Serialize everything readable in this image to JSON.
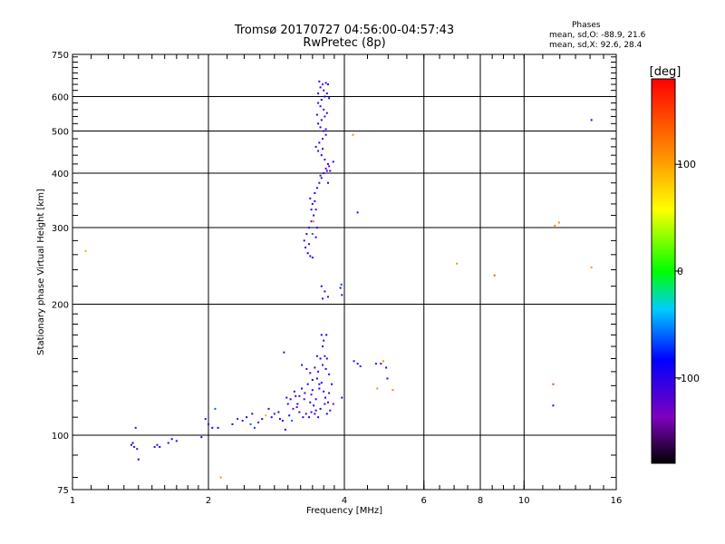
{
  "header": {
    "title_line1": "Tromsø 20170727 04:56:00-04:57:43",
    "title_line2": "RwPretec (8p)"
  },
  "phases": {
    "label": "Phases",
    "line_o": "mean, sd,O: -88.9, 21.6",
    "line_x": "mean, sd,X:  92.6, 28.4"
  },
  "colorbar": {
    "unit_label": "[deg]",
    "range": [
      -180,
      180
    ],
    "ticks": [
      {
        "value": 100,
        "label": "100"
      },
      {
        "value": 0,
        "label": "0"
      },
      {
        "value": -100,
        "label": "-100"
      }
    ]
  },
  "chart_data": {
    "type": "scatter",
    "xscale": "log2",
    "yscale": "log",
    "xlabel": "Frequency [MHz]",
    "ylabel": "Stationary phase Virtual Height [km]",
    "xlim": [
      1,
      16
    ],
    "ylim": [
      75,
      750
    ],
    "grid": true,
    "x_ticks": [
      "1",
      "2",
      "4",
      "6",
      "8",
      "10",
      "16"
    ],
    "x_tick_values": [
      1,
      2,
      4,
      6,
      8,
      10,
      16
    ],
    "y_ticks": [
      "75",
      "100",
      "200",
      "300",
      "400",
      "500",
      "600",
      "750"
    ],
    "y_tick_values": [
      75,
      100,
      200,
      300,
      400,
      500,
      600,
      750
    ],
    "x_gridlines": [
      2,
      4,
      6,
      8,
      10
    ],
    "y_gridlines": [
      100,
      200,
      300,
      400,
      500,
      600
    ],
    "points": [
      [
        1.07,
        265,
        95
      ],
      [
        1.35,
        95,
        -100
      ],
      [
        1.37,
        94,
        -110
      ],
      [
        1.38,
        104,
        -120
      ],
      [
        1.39,
        93,
        -115
      ],
      [
        1.4,
        88,
        -100
      ],
      [
        1.36,
        96,
        -90
      ],
      [
        1.52,
        94,
        -100
      ],
      [
        1.54,
        95,
        -110
      ],
      [
        1.56,
        94,
        -90
      ],
      [
        1.63,
        96,
        -100
      ],
      [
        1.66,
        98,
        -80
      ],
      [
        1.7,
        97,
        -95
      ],
      [
        1.93,
        99,
        -100
      ],
      [
        1.97,
        109,
        -110
      ],
      [
        2.0,
        106,
        -105
      ],
      [
        2.04,
        104,
        -90
      ],
      [
        2.07,
        115,
        -60
      ],
      [
        2.1,
        104,
        -100
      ],
      [
        2.13,
        80,
        110
      ],
      [
        2.26,
        106,
        -100
      ],
      [
        2.32,
        109,
        -120
      ],
      [
        2.38,
        108,
        -110
      ],
      [
        2.43,
        110,
        -90
      ],
      [
        2.48,
        106,
        -60
      ],
      [
        2.5,
        112,
        -100
      ],
      [
        2.53,
        104,
        -70
      ],
      [
        2.58,
        107,
        -110
      ],
      [
        2.63,
        109,
        -95
      ],
      [
        2.68,
        111,
        100
      ],
      [
        2.72,
        115,
        -100
      ],
      [
        2.76,
        110,
        -110
      ],
      [
        2.8,
        112,
        -120
      ],
      [
        2.86,
        113,
        -90
      ],
      [
        2.92,
        108,
        -80
      ],
      [
        2.96,
        103,
        -100
      ],
      [
        3.0,
        118,
        -110
      ],
      [
        3.04,
        121,
        -105
      ],
      [
        3.08,
        115,
        -130
      ],
      [
        3.12,
        123,
        -100
      ],
      [
        3.15,
        118,
        -90
      ],
      [
        3.18,
        113,
        -110
      ],
      [
        3.22,
        128,
        -100
      ],
      [
        3.26,
        121,
        -120
      ],
      [
        3.29,
        112,
        -105
      ],
      [
        3.32,
        131,
        -95
      ],
      [
        3.34,
        110,
        -110
      ],
      [
        3.36,
        119,
        -100
      ],
      [
        3.38,
        124,
        -130
      ],
      [
        3.4,
        127,
        -100
      ],
      [
        3.42,
        117,
        -90
      ],
      [
        3.44,
        112,
        -110
      ],
      [
        3.46,
        121,
        -100
      ],
      [
        3.48,
        135,
        -95
      ],
      [
        3.5,
        140,
        -110
      ],
      [
        3.52,
        128,
        -100
      ],
      [
        3.54,
        150,
        -90
      ],
      [
        3.56,
        132,
        -100
      ],
      [
        3.58,
        145,
        -120
      ],
      [
        3.6,
        126,
        -105
      ],
      [
        3.62,
        118,
        -110
      ],
      [
        3.64,
        142,
        -100
      ],
      [
        3.66,
        150,
        -95
      ],
      [
        3.68,
        119,
        -110
      ],
      [
        3.7,
        125,
        -100
      ],
      [
        3.22,
        145,
        -120
      ],
      [
        3.3,
        142,
        -110
      ],
      [
        3.36,
        139,
        -100
      ],
      [
        3.44,
        143,
        -105
      ],
      [
        3.48,
        152,
        -95
      ],
      [
        3.56,
        170,
        -100
      ],
      [
        3.6,
        165,
        -110
      ],
      [
        3.65,
        170,
        -90
      ],
      [
        3.58,
        160,
        -100
      ],
      [
        3.62,
        152,
        -120
      ],
      [
        3.7,
        138,
        -110
      ],
      [
        3.52,
        131,
        -100
      ],
      [
        3.4,
        134,
        -95
      ],
      [
        3.1,
        126,
        -100
      ],
      [
        3.06,
        108,
        -60
      ],
      [
        2.98,
        122,
        -100
      ],
      [
        2.94,
        155,
        -110
      ],
      [
        3.18,
        123,
        -120
      ],
      [
        3.27,
        125,
        -110
      ],
      [
        3.46,
        114,
        -100
      ],
      [
        3.54,
        115,
        -90
      ],
      [
        3.63,
        122,
        -100
      ],
      [
        3.72,
        114,
        -110
      ],
      [
        3.75,
        131,
        -100
      ],
      [
        3.78,
        118,
        -120
      ],
      [
        3.66,
        112,
        -95
      ],
      [
        3.5,
        110,
        -105
      ],
      [
        3.38,
        113,
        -110
      ],
      [
        3.24,
        110,
        -100
      ],
      [
        3.14,
        116,
        -120
      ],
      [
        3.02,
        111,
        -100
      ],
      [
        2.88,
        109,
        -95
      ],
      [
        3.56,
        220,
        -100
      ],
      [
        3.62,
        214,
        -110
      ],
      [
        3.68,
        208,
        -120
      ],
      [
        3.58,
        206,
        -100
      ],
      [
        3.92,
        218,
        -90
      ],
      [
        3.95,
        210,
        -100
      ],
      [
        3.94,
        222,
        -70
      ],
      [
        3.95,
        122,
        -100
      ],
      [
        4.2,
        148,
        -110
      ],
      [
        4.28,
        146,
        -100
      ],
      [
        4.34,
        144,
        -120
      ],
      [
        4.7,
        146,
        -110
      ],
      [
        4.82,
        146,
        -100
      ],
      [
        4.95,
        143,
        -90
      ],
      [
        4.88,
        148,
        110
      ],
      [
        4.73,
        128,
        105
      ],
      [
        5.12,
        127,
        115
      ],
      [
        4.98,
        135,
        -100
      ],
      [
        3.4,
        256,
        -100
      ],
      [
        3.36,
        258,
        -110
      ],
      [
        3.32,
        262,
        -90
      ],
      [
        3.28,
        270,
        -100
      ],
      [
        3.26,
        280,
        -110
      ],
      [
        3.3,
        290,
        -100
      ],
      [
        3.34,
        300,
        -95
      ],
      [
        3.38,
        310,
        -110
      ],
      [
        3.42,
        320,
        -100
      ],
      [
        3.46,
        330,
        -120
      ],
      [
        3.4,
        340,
        -100
      ],
      [
        3.36,
        350,
        -110
      ],
      [
        3.44,
        360,
        -100
      ],
      [
        3.48,
        370,
        -90
      ],
      [
        3.52,
        380,
        -100
      ],
      [
        3.56,
        390,
        -110
      ],
      [
        3.6,
        400,
        -100
      ],
      [
        3.64,
        410,
        -120
      ],
      [
        3.68,
        420,
        -100
      ],
      [
        3.62,
        430,
        -110
      ],
      [
        3.56,
        440,
        -95
      ],
      [
        3.5,
        450,
        -100
      ],
      [
        3.46,
        460,
        -110
      ],
      [
        3.52,
        470,
        -100
      ],
      [
        3.58,
        480,
        -120
      ],
      [
        3.64,
        490,
        -100
      ],
      [
        3.6,
        500,
        -110
      ],
      [
        3.54,
        510,
        -100
      ],
      [
        3.5,
        520,
        -90
      ],
      [
        3.56,
        530,
        -100
      ],
      [
        3.62,
        540,
        -110
      ],
      [
        3.66,
        550,
        -100
      ],
      [
        3.6,
        560,
        -120
      ],
      [
        3.54,
        570,
        -100
      ],
      [
        3.5,
        580,
        -110
      ],
      [
        3.56,
        590,
        -100
      ],
      [
        3.62,
        600,
        -90
      ],
      [
        3.66,
        610,
        -100
      ],
      [
        3.6,
        620,
        -110
      ],
      [
        3.54,
        630,
        -100
      ],
      [
        3.58,
        640,
        -120
      ],
      [
        3.64,
        645,
        -110
      ],
      [
        3.52,
        650,
        -100
      ],
      [
        3.68,
        640,
        -95
      ],
      [
        3.38,
        330,
        -100
      ],
      [
        3.44,
        345,
        -110
      ],
      [
        3.4,
        290,
        -60
      ],
      [
        3.48,
        300,
        -100
      ],
      [
        3.54,
        395,
        -110
      ],
      [
        3.66,
        405,
        -100
      ],
      [
        3.7,
        415,
        -120
      ],
      [
        3.58,
        455,
        -100
      ],
      [
        3.64,
        505,
        -110
      ],
      [
        3.48,
        545,
        -100
      ],
      [
        3.7,
        595,
        -90
      ],
      [
        3.5,
        610,
        -100
      ],
      [
        3.34,
        275,
        -110
      ],
      [
        3.46,
        285,
        -100
      ],
      [
        3.42,
        310,
        110
      ],
      [
        3.78,
        425,
        -100
      ],
      [
        3.72,
        405,
        -110
      ],
      [
        3.68,
        380,
        -100
      ],
      [
        4.28,
        325,
        -110
      ],
      [
        4.18,
        490,
        110
      ],
      [
        7.1,
        248,
        110
      ],
      [
        8.6,
        233,
        140
      ],
      [
        11.6,
        131,
        150
      ],
      [
        11.6,
        117,
        -100
      ],
      [
        11.7,
        303,
        110
      ],
      [
        11.95,
        308,
        115
      ],
      [
        14.1,
        243,
        105
      ],
      [
        14.1,
        530,
        -100
      ]
    ]
  }
}
